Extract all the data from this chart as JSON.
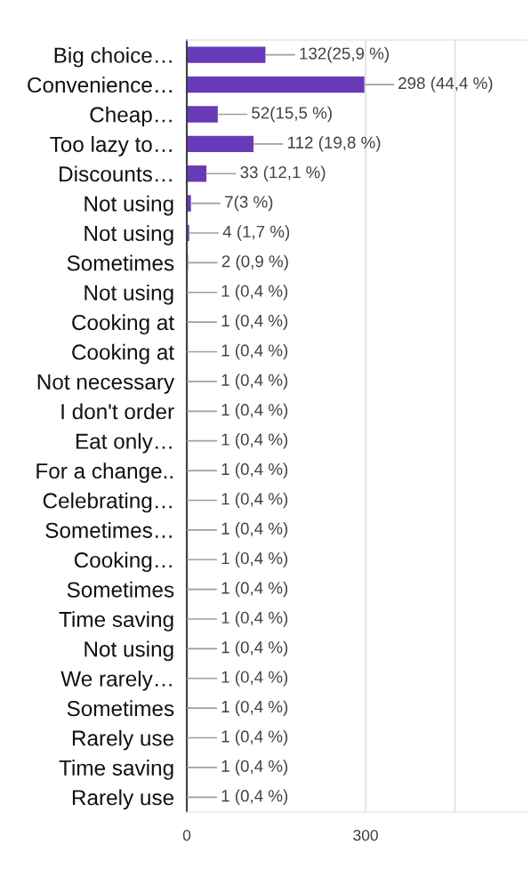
{
  "chart_data": {
    "type": "bar",
    "orientation": "horizontal",
    "categories": [
      "Big choice…",
      "Convenience…",
      "Cheap…",
      "Too lazy to…",
      "Discounts…",
      "Not using",
      "Not using",
      "Sometimes",
      "Not using",
      "Cooking at",
      "Cooking at",
      "Not necessary",
      "I don't order",
      "Eat only…",
      "For a change..",
      "Celebrating…",
      "Sometimes…",
      "Cooking…",
      "Sometimes",
      "Time saving",
      "Not using",
      "We rarely…",
      "Sometimes",
      "Rarely use",
      "Time saving",
      "Rarely use"
    ],
    "values": [
      132,
      298,
      52,
      112,
      33,
      7,
      4,
      2,
      1,
      1,
      1,
      1,
      1,
      1,
      1,
      1,
      1,
      1,
      1,
      1,
      1,
      1,
      1,
      1,
      1,
      1
    ],
    "value_labels": [
      "132(25,9 %)",
      "298 (44,4 %)",
      "52(15,5 %)",
      "112 (19,8 %)",
      "33 (12,1 %)",
      "7(3 %)",
      "4 (1,7 %)",
      "2 (0,9 %)",
      "1 (0,4 %)",
      "1 (0,4 %)",
      "1 (0,4 %)",
      "1 (0,4 %)",
      "1 (0,4 %)",
      "1 (0,4 %)",
      "1 (0,4 %)",
      "1 (0,4 %)",
      "1 (0,4 %)",
      "1 (0,4 %)",
      "1 (0,4 %)",
      "1 (0,4 %)",
      "1 (0,4 %)",
      "1 (0,4 %)",
      "1 (0,4 %)",
      "1 (0,4 %)",
      "1 (0,4 %)",
      "1 (0,4 %)"
    ],
    "color": "#673ab7",
    "xlim": [
      0,
      570
    ],
    "xticks": [
      0,
      300,
      {
        "value": 450,
        "label": null
      }
    ],
    "grid": "x"
  }
}
